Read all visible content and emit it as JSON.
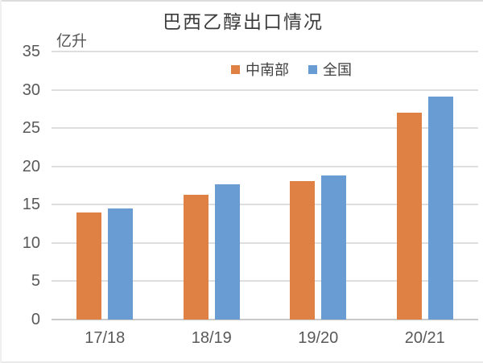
{
  "chart": {
    "title": "巴西乙醇出口情况",
    "unit_label": "亿升"
  },
  "chart_data": {
    "type": "bar",
    "title": "巴西乙醇出口情况",
    "xlabel": "",
    "ylabel": "亿升",
    "categories": [
      "17/18",
      "18/19",
      "19/20",
      "20/21"
    ],
    "series": [
      {
        "name": "中南部",
        "color": "#DF8044",
        "values": [
          14.0,
          16.3,
          18.1,
          27.0
        ]
      },
      {
        "name": "全国",
        "color": "#689CD2",
        "values": [
          14.5,
          17.7,
          18.8,
          29.1
        ]
      }
    ],
    "ylim": [
      0,
      35
    ],
    "yticks": [
      0,
      5,
      10,
      15,
      20,
      25,
      30,
      35
    ],
    "grid": true,
    "legend_position": "top-center",
    "colors": {
      "gridline": "#dedede",
      "axis_line": "#c9c9c9",
      "tick_text": "#595959",
      "title_text": "#3b3b3b"
    }
  }
}
